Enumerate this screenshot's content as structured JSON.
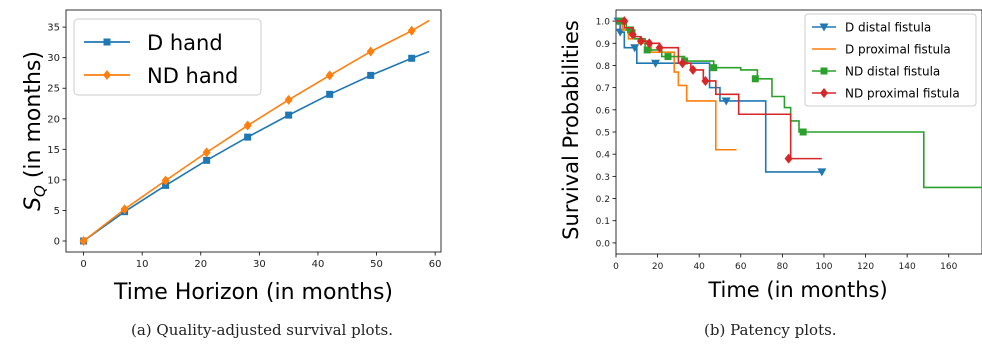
{
  "chart_data": [
    {
      "type": "line",
      "xlabel": "Time Horizon (in months)",
      "ylabel": "S_Q (in months)",
      "xlim": [
        -3,
        61
      ],
      "ylim": [
        -1.8,
        37.8
      ],
      "xticks": [
        0,
        10,
        20,
        30,
        40,
        50,
        60
      ],
      "yticks": [
        0,
        5,
        10,
        15,
        20,
        25,
        30,
        35
      ],
      "grid": false,
      "legend_position": "top-left",
      "series": [
        {
          "name": "D hand",
          "color": "#1f77b4",
          "marker": "square",
          "line_x": [
            0,
            7,
            14,
            21,
            28,
            35,
            42,
            49,
            56,
            59
          ],
          "line_y": [
            0,
            4.8,
            9.1,
            13.2,
            17.0,
            20.6,
            24.0,
            27.1,
            29.9,
            31.0
          ],
          "x": [
            0,
            7,
            14,
            21,
            28,
            35,
            42,
            49,
            56
          ],
          "y": [
            0,
            4.8,
            9.1,
            13.2,
            17.0,
            20.6,
            24.0,
            27.1,
            29.9
          ]
        },
        {
          "name": "ND hand",
          "color": "#ff7f0e",
          "marker": "diamond",
          "line_x": [
            0,
            7,
            14,
            21,
            28,
            35,
            42,
            49,
            56,
            59
          ],
          "line_y": [
            0,
            5.2,
            9.9,
            14.5,
            18.9,
            23.1,
            27.1,
            31.0,
            34.4,
            36.1
          ],
          "x": [
            0,
            7,
            14,
            21,
            28,
            35,
            42,
            49,
            56
          ],
          "y": [
            0,
            5.2,
            9.9,
            14.5,
            18.9,
            23.1,
            27.1,
            31.0,
            34.4
          ]
        }
      ],
      "caption": "(a) Quality-adjusted survival plots."
    },
    {
      "type": "line",
      "xlabel": "Time (in months)",
      "ylabel": "Survival Probabilities",
      "xlim": [
        0,
        176
      ],
      "ylim": [
        -0.05,
        1.05
      ],
      "xticks": [
        0,
        20,
        40,
        60,
        80,
        100,
        120,
        140,
        160
      ],
      "yticks": [
        0.0,
        0.1,
        0.2,
        0.3,
        0.4,
        0.5,
        0.6,
        0.7,
        0.8,
        0.9,
        1.0
      ],
      "ytick_labels": [
        "0.0",
        "0.1",
        "0.2",
        "0.3",
        "0.4",
        "0.5",
        "0.6",
        "0.7",
        "0.8",
        "0.9",
        "1.0"
      ],
      "grid": false,
      "legend_position": "top-right",
      "series": [
        {
          "name": "D distal fistula",
          "color": "#1f77b4",
          "marker": "triangle-down",
          "steps": [
            [
              0,
              1.0
            ],
            [
              2,
              0.95
            ],
            [
              4,
              0.88
            ],
            [
              10,
              0.81
            ],
            [
              40,
              0.81
            ],
            [
              45,
              0.7
            ],
            [
              50,
              0.64
            ],
            [
              72,
              0.32
            ],
            [
              100,
              0.32
            ]
          ],
          "x": [
            1,
            2,
            9,
            19,
            53,
            99
          ],
          "y": [
            1.0,
            0.95,
            0.88,
            0.81,
            0.64,
            0.32
          ]
        },
        {
          "name": "D proximal fistula",
          "color": "#ff7f0e",
          "marker": "none",
          "steps": [
            [
              0,
              1.0
            ],
            [
              3,
              0.96
            ],
            [
              6,
              0.92
            ],
            [
              11,
              0.9
            ],
            [
              17,
              0.86
            ],
            [
              28,
              0.77
            ],
            [
              30,
              0.71
            ],
            [
              34,
              0.64
            ],
            [
              48,
              0.42
            ],
            [
              58,
              0.42
            ]
          ],
          "x": [],
          "y": []
        },
        {
          "name": "ND distal fistula",
          "color": "#2ca02c",
          "marker": "square",
          "steps": [
            [
              0,
              1.0
            ],
            [
              5,
              0.96
            ],
            [
              9,
              0.92
            ],
            [
              14,
              0.87
            ],
            [
              22,
              0.84
            ],
            [
              33,
              0.82
            ],
            [
              47,
              0.79
            ],
            [
              60,
              0.78
            ],
            [
              68,
              0.74
            ],
            [
              75,
              0.66
            ],
            [
              81,
              0.61
            ],
            [
              84,
              0.55
            ],
            [
              88,
              0.5
            ],
            [
              148,
              0.25
            ],
            [
              176,
              0.25
            ]
          ],
          "x": [
            2,
            7,
            15,
            25,
            33,
            47,
            67,
            90
          ],
          "y": [
            1.0,
            0.96,
            0.87,
            0.84,
            0.82,
            0.79,
            0.74,
            0.5
          ]
        },
        {
          "name": "ND proximal fistula",
          "color": "#d62728",
          "marker": "diamond",
          "steps": [
            [
              0,
              1.0
            ],
            [
              4,
              0.97
            ],
            [
              8,
              0.93
            ],
            [
              12,
              0.91
            ],
            [
              16,
              0.9
            ],
            [
              21,
              0.88
            ],
            [
              30,
              0.81
            ],
            [
              36,
              0.78
            ],
            [
              42,
              0.73
            ],
            [
              48,
              0.67
            ],
            [
              59,
              0.58
            ],
            [
              84,
              0.38
            ],
            [
              99,
              0.38
            ]
          ],
          "x": [
            4,
            8,
            12,
            16,
            21,
            32,
            37,
            43,
            83
          ],
          "y": [
            1.0,
            0.94,
            0.91,
            0.9,
            0.88,
            0.81,
            0.78,
            0.73,
            0.38
          ]
        }
      ],
      "caption": "(b) Patency plots."
    }
  ]
}
